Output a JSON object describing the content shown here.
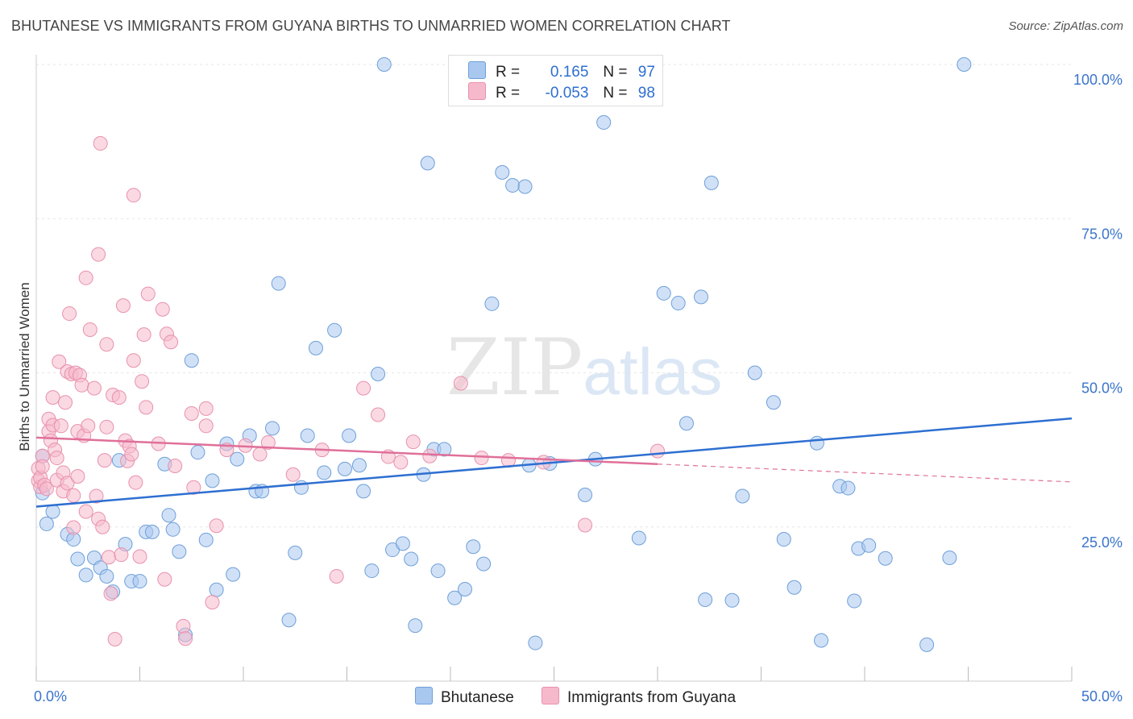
{
  "title": "BHUTANESE VS IMMIGRANTS FROM GUYANA BIRTHS TO UNMARRIED WOMEN CORRELATION CHART",
  "source": "Source: ZipAtlas.com",
  "watermark": {
    "zip": "ZIP",
    "atlas": "atlas"
  },
  "legend": {
    "rows": [
      {
        "r_label": "R =",
        "r_value": "0.165",
        "n_label": "N =",
        "n_value": "97",
        "color": "#a9c8f0"
      },
      {
        "r_label": "R =",
        "r_value": "-0.053",
        "n_label": "N =",
        "n_value": "98",
        "color": "#f6b9cc"
      }
    ]
  },
  "chart_data": {
    "type": "scatter",
    "title": "BHUTANESE VS IMMIGRANTS FROM GUYANA BIRTHS TO UNMARRIED WOMEN CORRELATION CHART",
    "xlabel": "",
    "ylabel": "Births to Unmarried Women",
    "xlim": [
      0,
      50
    ],
    "ylim": [
      0,
      100
    ],
    "x_tick_labels": [
      "0.0%",
      "50.0%"
    ],
    "y_tick_labels": [
      "25.0%",
      "50.0%",
      "75.0%",
      "100.0%"
    ],
    "y_ticks": [
      25,
      50,
      75,
      100
    ],
    "grid": true,
    "legend_position": "bottom",
    "series": [
      {
        "name": "Bhutanese",
        "color": "#a9c8f0",
        "stroke": "#6f9fd8",
        "trend": {
          "x": [
            0,
            50
          ],
          "y": [
            28.3,
            42.6
          ],
          "color": "#2e6fd1"
        },
        "points": [
          [
            0.3,
            36.5
          ],
          [
            0.3,
            30.5
          ],
          [
            0.5,
            25.5
          ],
          [
            0.8,
            27.5
          ],
          [
            1.5,
            23.8
          ],
          [
            1.8,
            23
          ],
          [
            2,
            19.8
          ],
          [
            2.4,
            17.2
          ],
          [
            2.8,
            20
          ],
          [
            3.1,
            18.4
          ],
          [
            3.4,
            17
          ],
          [
            3.7,
            14.5
          ],
          [
            4,
            35.8
          ],
          [
            4.3,
            22.2
          ],
          [
            4.6,
            16.2
          ],
          [
            5,
            16.2
          ],
          [
            5.3,
            24.2
          ],
          [
            5.6,
            24.2
          ],
          [
            6.2,
            35.2
          ],
          [
            6.4,
            26.9
          ],
          [
            6.6,
            24.6
          ],
          [
            6.9,
            21
          ],
          [
            7.2,
            7.5
          ],
          [
            7.5,
            52
          ],
          [
            7.8,
            37.1
          ],
          [
            8.2,
            22.9
          ],
          [
            8.5,
            32.5
          ],
          [
            8.7,
            14.8
          ],
          [
            9.2,
            38.5
          ],
          [
            9.5,
            17.3
          ],
          [
            9.7,
            36
          ],
          [
            10.3,
            39.8
          ],
          [
            10.6,
            30.8
          ],
          [
            10.9,
            30.8
          ],
          [
            11.4,
            41
          ],
          [
            11.7,
            64.5
          ],
          [
            12.2,
            9.9
          ],
          [
            12.5,
            20.8
          ],
          [
            12.8,
            31.4
          ],
          [
            13.1,
            39.8
          ],
          [
            13.5,
            54
          ],
          [
            13.9,
            33.8
          ],
          [
            14.4,
            56.9
          ],
          [
            14.9,
            34.4
          ],
          [
            15.1,
            39.8
          ],
          [
            15.6,
            35
          ],
          [
            15.8,
            30.8
          ],
          [
            16.2,
            17.9
          ],
          [
            16.5,
            49.8
          ],
          [
            16.8,
            100
          ],
          [
            17.2,
            21.3
          ],
          [
            17.7,
            22.3
          ],
          [
            18.1,
            19.8
          ],
          [
            18.3,
            9
          ],
          [
            18.7,
            33.5
          ],
          [
            18.9,
            84
          ],
          [
            19.2,
            37.6
          ],
          [
            19.4,
            17.9
          ],
          [
            19.7,
            37.6
          ],
          [
            20.2,
            13.5
          ],
          [
            20.7,
            14.9
          ],
          [
            21.1,
            21.8
          ],
          [
            21.6,
            19
          ],
          [
            22,
            61.2
          ],
          [
            22.5,
            82.5
          ],
          [
            23,
            80.4
          ],
          [
            23.6,
            80.2
          ],
          [
            23.8,
            35
          ],
          [
            24.1,
            6.2
          ],
          [
            24.8,
            35.3
          ],
          [
            26.5,
            30.2
          ],
          [
            27,
            36
          ],
          [
            27.4,
            90.6
          ],
          [
            29.1,
            23.2
          ],
          [
            30.3,
            62.9
          ],
          [
            31,
            61.3
          ],
          [
            31.4,
            41.8
          ],
          [
            32.1,
            62.3
          ],
          [
            32.3,
            13.2
          ],
          [
            32.6,
            80.8
          ],
          [
            33.6,
            13.1
          ],
          [
            34.1,
            30
          ],
          [
            34.7,
            50
          ],
          [
            35.6,
            45.2
          ],
          [
            36.1,
            23
          ],
          [
            36.6,
            15.2
          ],
          [
            37.7,
            38.6
          ],
          [
            37.9,
            6.6
          ],
          [
            38.8,
            31.6
          ],
          [
            39.2,
            31.3
          ],
          [
            39.5,
            13
          ],
          [
            39.7,
            21.5
          ],
          [
            40.2,
            22
          ],
          [
            41,
            19.9
          ],
          [
            43,
            5.9
          ],
          [
            44.1,
            20
          ],
          [
            44.8,
            100
          ]
        ]
      },
      {
        "name": "Immigrants from Guyana",
        "color": "#f6b9cc",
        "stroke": "#e891ad",
        "trend": {
          "x": [
            0,
            30
          ],
          "y": [
            39.5,
            35.2
          ],
          "color": "#e07099"
        },
        "trend_dashed": {
          "x": [
            30,
            50
          ],
          "y": [
            35.2,
            32.3
          ]
        },
        "points": [
          [
            0.1,
            34.5
          ],
          [
            0.1,
            32.5
          ],
          [
            0.2,
            31.5
          ],
          [
            0.2,
            33
          ],
          [
            0.3,
            36.5
          ],
          [
            0.3,
            34.8
          ],
          [
            0.4,
            31.8
          ],
          [
            0.5,
            31.2
          ],
          [
            0.6,
            42.5
          ],
          [
            0.6,
            40.5
          ],
          [
            0.7,
            39
          ],
          [
            0.8,
            46
          ],
          [
            0.8,
            41.5
          ],
          [
            0.9,
            37.5
          ],
          [
            1,
            36.2
          ],
          [
            1,
            32.6
          ],
          [
            1.1,
            51.8
          ],
          [
            1.2,
            41.4
          ],
          [
            1.3,
            30.8
          ],
          [
            1.3,
            33.8
          ],
          [
            1.4,
            45.2
          ],
          [
            1.5,
            50.2
          ],
          [
            1.5,
            32.1
          ],
          [
            1.6,
            59.6
          ],
          [
            1.7,
            49.8
          ],
          [
            1.8,
            30.1
          ],
          [
            1.8,
            24.9
          ],
          [
            1.9,
            50
          ],
          [
            2,
            40.5
          ],
          [
            2,
            33.2
          ],
          [
            2.1,
            49.6
          ],
          [
            2.2,
            48
          ],
          [
            2.3,
            39.8
          ],
          [
            2.4,
            27.5
          ],
          [
            2.4,
            65.4
          ],
          [
            2.5,
            41.4
          ],
          [
            2.6,
            57
          ],
          [
            2.8,
            47.5
          ],
          [
            2.9,
            30
          ],
          [
            3,
            26.3
          ],
          [
            3,
            69.2
          ],
          [
            3.1,
            87.2
          ],
          [
            3.2,
            25
          ],
          [
            3.3,
            35.8
          ],
          [
            3.4,
            54.6
          ],
          [
            3.4,
            41.2
          ],
          [
            3.5,
            20.1
          ],
          [
            3.6,
            14.2
          ],
          [
            3.7,
            46.4
          ],
          [
            3.8,
            6.8
          ],
          [
            4,
            46
          ],
          [
            4.1,
            20.5
          ],
          [
            4.2,
            60.9
          ],
          [
            4.3,
            39
          ],
          [
            4.4,
            35.7
          ],
          [
            4.5,
            38.1
          ],
          [
            4.6,
            36.8
          ],
          [
            4.7,
            52
          ],
          [
            4.7,
            78.8
          ],
          [
            4.8,
            32.2
          ],
          [
            5,
            20.2
          ],
          [
            5.1,
            48.6
          ],
          [
            5.2,
            56.2
          ],
          [
            5.3,
            44.4
          ],
          [
            5.4,
            62.8
          ],
          [
            5.9,
            38.5
          ],
          [
            6.1,
            60.3
          ],
          [
            6.2,
            16.5
          ],
          [
            6.3,
            56.3
          ],
          [
            6.5,
            55
          ],
          [
            6.7,
            34.9
          ],
          [
            7.1,
            8.9
          ],
          [
            7.2,
            6.9
          ],
          [
            7.5,
            43.4
          ],
          [
            7.6,
            31.4
          ],
          [
            8.2,
            44.2
          ],
          [
            8.2,
            41.4
          ],
          [
            8.5,
            12.8
          ],
          [
            8.7,
            25.2
          ],
          [
            9.2,
            37.5
          ],
          [
            10.1,
            38.2
          ],
          [
            10.8,
            36.8
          ],
          [
            11.2,
            38.7
          ],
          [
            12.4,
            33.5
          ],
          [
            13.8,
            37.5
          ],
          [
            14.5,
            17
          ],
          [
            15.8,
            47.5
          ],
          [
            16.5,
            43.2
          ],
          [
            17,
            36.4
          ],
          [
            17.6,
            35.5
          ],
          [
            18.2,
            38.8
          ],
          [
            19,
            36.5
          ],
          [
            20.5,
            48.3
          ],
          [
            21.5,
            36.2
          ],
          [
            22.8,
            35.8
          ],
          [
            24.5,
            35.5
          ],
          [
            26.5,
            25.3
          ],
          [
            30,
            37.3
          ]
        ]
      }
    ]
  },
  "bottom_legend": [
    {
      "label": "Bhutanese",
      "color": "#a9c8f0"
    },
    {
      "label": "Immigrants from Guyana",
      "color": "#f6b9cc"
    }
  ]
}
